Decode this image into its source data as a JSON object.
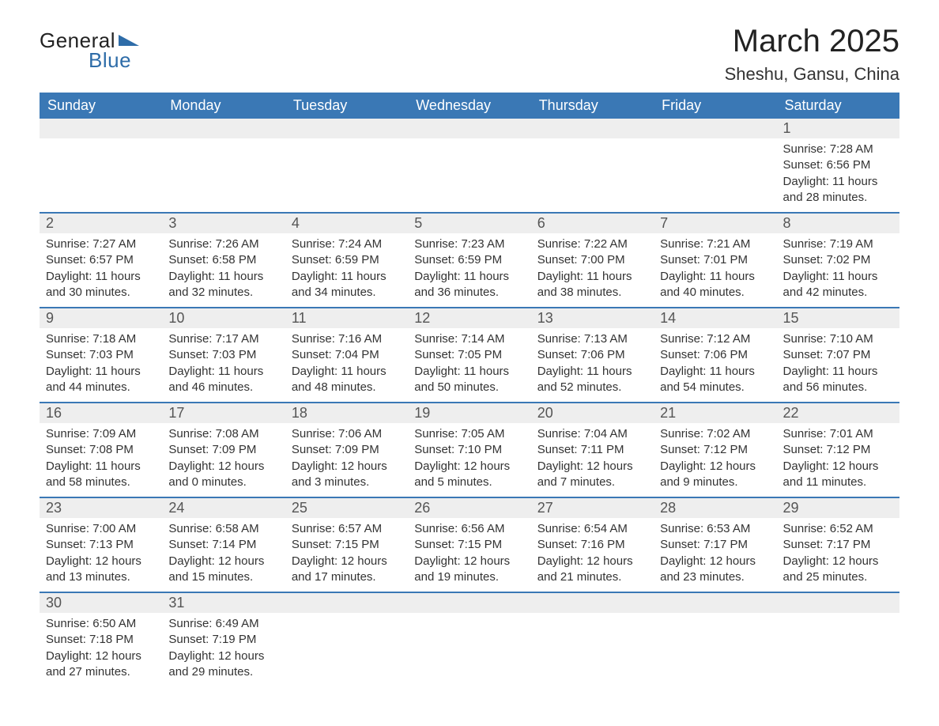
{
  "logo": {
    "text1": "General",
    "text2": "Blue"
  },
  "title": "March 2025",
  "location": "Sheshu, Gansu, China",
  "colors": {
    "header_bg": "#3a78b5",
    "header_text": "#ffffff",
    "daynum_bg": "#eeeeee",
    "border": "#3a78b5",
    "body_text": "#333333",
    "logo_blue": "#2e6ca8",
    "background": "#ffffff"
  },
  "weekdays": [
    "Sunday",
    "Monday",
    "Tuesday",
    "Wednesday",
    "Thursday",
    "Friday",
    "Saturday"
  ],
  "weeks": [
    [
      null,
      null,
      null,
      null,
      null,
      null,
      {
        "d": "1",
        "sr": "Sunrise: 7:28 AM",
        "ss": "Sunset: 6:56 PM",
        "dl1": "Daylight: 11 hours",
        "dl2": "and 28 minutes."
      }
    ],
    [
      {
        "d": "2",
        "sr": "Sunrise: 7:27 AM",
        "ss": "Sunset: 6:57 PM",
        "dl1": "Daylight: 11 hours",
        "dl2": "and 30 minutes."
      },
      {
        "d": "3",
        "sr": "Sunrise: 7:26 AM",
        "ss": "Sunset: 6:58 PM",
        "dl1": "Daylight: 11 hours",
        "dl2": "and 32 minutes."
      },
      {
        "d": "4",
        "sr": "Sunrise: 7:24 AM",
        "ss": "Sunset: 6:59 PM",
        "dl1": "Daylight: 11 hours",
        "dl2": "and 34 minutes."
      },
      {
        "d": "5",
        "sr": "Sunrise: 7:23 AM",
        "ss": "Sunset: 6:59 PM",
        "dl1": "Daylight: 11 hours",
        "dl2": "and 36 minutes."
      },
      {
        "d": "6",
        "sr": "Sunrise: 7:22 AM",
        "ss": "Sunset: 7:00 PM",
        "dl1": "Daylight: 11 hours",
        "dl2": "and 38 minutes."
      },
      {
        "d": "7",
        "sr": "Sunrise: 7:21 AM",
        "ss": "Sunset: 7:01 PM",
        "dl1": "Daylight: 11 hours",
        "dl2": "and 40 minutes."
      },
      {
        "d": "8",
        "sr": "Sunrise: 7:19 AM",
        "ss": "Sunset: 7:02 PM",
        "dl1": "Daylight: 11 hours",
        "dl2": "and 42 minutes."
      }
    ],
    [
      {
        "d": "9",
        "sr": "Sunrise: 7:18 AM",
        "ss": "Sunset: 7:03 PM",
        "dl1": "Daylight: 11 hours",
        "dl2": "and 44 minutes."
      },
      {
        "d": "10",
        "sr": "Sunrise: 7:17 AM",
        "ss": "Sunset: 7:03 PM",
        "dl1": "Daylight: 11 hours",
        "dl2": "and 46 minutes."
      },
      {
        "d": "11",
        "sr": "Sunrise: 7:16 AM",
        "ss": "Sunset: 7:04 PM",
        "dl1": "Daylight: 11 hours",
        "dl2": "and 48 minutes."
      },
      {
        "d": "12",
        "sr": "Sunrise: 7:14 AM",
        "ss": "Sunset: 7:05 PM",
        "dl1": "Daylight: 11 hours",
        "dl2": "and 50 minutes."
      },
      {
        "d": "13",
        "sr": "Sunrise: 7:13 AM",
        "ss": "Sunset: 7:06 PM",
        "dl1": "Daylight: 11 hours",
        "dl2": "and 52 minutes."
      },
      {
        "d": "14",
        "sr": "Sunrise: 7:12 AM",
        "ss": "Sunset: 7:06 PM",
        "dl1": "Daylight: 11 hours",
        "dl2": "and 54 minutes."
      },
      {
        "d": "15",
        "sr": "Sunrise: 7:10 AM",
        "ss": "Sunset: 7:07 PM",
        "dl1": "Daylight: 11 hours",
        "dl2": "and 56 minutes."
      }
    ],
    [
      {
        "d": "16",
        "sr": "Sunrise: 7:09 AM",
        "ss": "Sunset: 7:08 PM",
        "dl1": "Daylight: 11 hours",
        "dl2": "and 58 minutes."
      },
      {
        "d": "17",
        "sr": "Sunrise: 7:08 AM",
        "ss": "Sunset: 7:09 PM",
        "dl1": "Daylight: 12 hours",
        "dl2": "and 0 minutes."
      },
      {
        "d": "18",
        "sr": "Sunrise: 7:06 AM",
        "ss": "Sunset: 7:09 PM",
        "dl1": "Daylight: 12 hours",
        "dl2": "and 3 minutes."
      },
      {
        "d": "19",
        "sr": "Sunrise: 7:05 AM",
        "ss": "Sunset: 7:10 PM",
        "dl1": "Daylight: 12 hours",
        "dl2": "and 5 minutes."
      },
      {
        "d": "20",
        "sr": "Sunrise: 7:04 AM",
        "ss": "Sunset: 7:11 PM",
        "dl1": "Daylight: 12 hours",
        "dl2": "and 7 minutes."
      },
      {
        "d": "21",
        "sr": "Sunrise: 7:02 AM",
        "ss": "Sunset: 7:12 PM",
        "dl1": "Daylight: 12 hours",
        "dl2": "and 9 minutes."
      },
      {
        "d": "22",
        "sr": "Sunrise: 7:01 AM",
        "ss": "Sunset: 7:12 PM",
        "dl1": "Daylight: 12 hours",
        "dl2": "and 11 minutes."
      }
    ],
    [
      {
        "d": "23",
        "sr": "Sunrise: 7:00 AM",
        "ss": "Sunset: 7:13 PM",
        "dl1": "Daylight: 12 hours",
        "dl2": "and 13 minutes."
      },
      {
        "d": "24",
        "sr": "Sunrise: 6:58 AM",
        "ss": "Sunset: 7:14 PM",
        "dl1": "Daylight: 12 hours",
        "dl2": "and 15 minutes."
      },
      {
        "d": "25",
        "sr": "Sunrise: 6:57 AM",
        "ss": "Sunset: 7:15 PM",
        "dl1": "Daylight: 12 hours",
        "dl2": "and 17 minutes."
      },
      {
        "d": "26",
        "sr": "Sunrise: 6:56 AM",
        "ss": "Sunset: 7:15 PM",
        "dl1": "Daylight: 12 hours",
        "dl2": "and 19 minutes."
      },
      {
        "d": "27",
        "sr": "Sunrise: 6:54 AM",
        "ss": "Sunset: 7:16 PM",
        "dl1": "Daylight: 12 hours",
        "dl2": "and 21 minutes."
      },
      {
        "d": "28",
        "sr": "Sunrise: 6:53 AM",
        "ss": "Sunset: 7:17 PM",
        "dl1": "Daylight: 12 hours",
        "dl2": "and 23 minutes."
      },
      {
        "d": "29",
        "sr": "Sunrise: 6:52 AM",
        "ss": "Sunset: 7:17 PM",
        "dl1": "Daylight: 12 hours",
        "dl2": "and 25 minutes."
      }
    ],
    [
      {
        "d": "30",
        "sr": "Sunrise: 6:50 AM",
        "ss": "Sunset: 7:18 PM",
        "dl1": "Daylight: 12 hours",
        "dl2": "and 27 minutes."
      },
      {
        "d": "31",
        "sr": "Sunrise: 6:49 AM",
        "ss": "Sunset: 7:19 PM",
        "dl1": "Daylight: 12 hours",
        "dl2": "and 29 minutes."
      },
      null,
      null,
      null,
      null,
      null
    ]
  ]
}
